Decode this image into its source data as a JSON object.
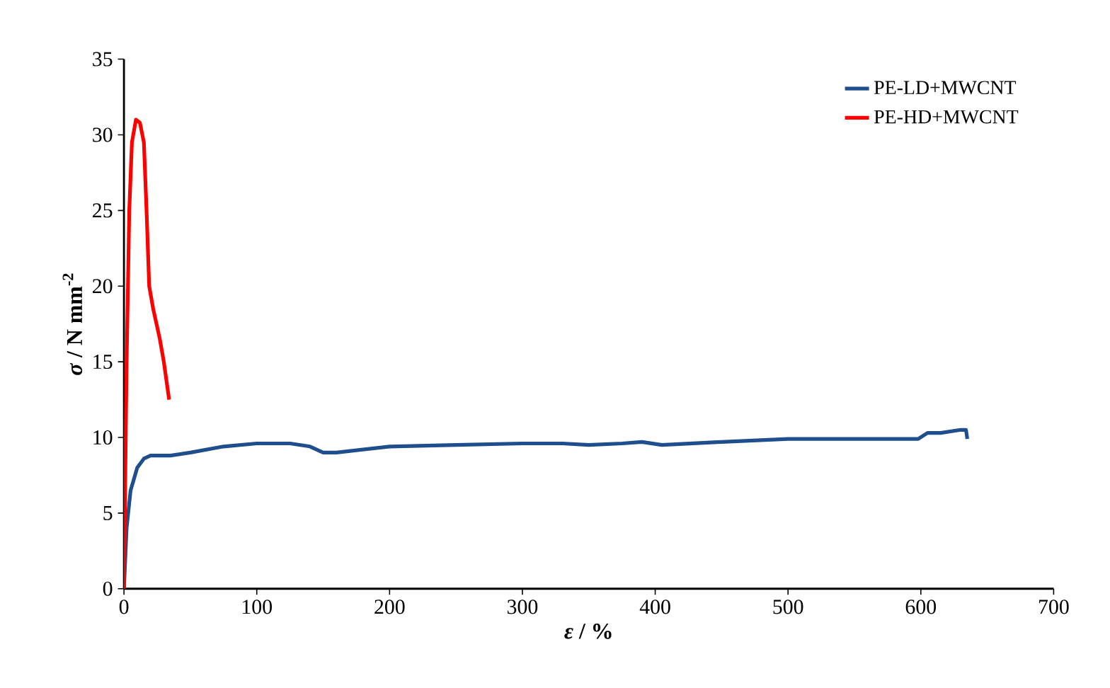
{
  "chart_data": {
    "type": "line",
    "xlabel": "*ε* /  %",
    "ylabel": "*σ* / N mm$^{-2}$",
    "xlim": [
      0,
      700
    ],
    "ylim": [
      0,
      35
    ],
    "xticks": [
      0,
      100,
      200,
      300,
      400,
      500,
      600,
      700
    ],
    "yticks": [
      0,
      5,
      10,
      15,
      20,
      25,
      30,
      35
    ],
    "legend": "top right",
    "grid": false,
    "marker": "none",
    "line_style": "solid",
    "series": [
      {
        "name": "PE-LD+MWCNT",
        "color": "#1f4e8c",
        "x": [
          0,
          2,
          5,
          10,
          15,
          20,
          35,
          50,
          75,
          100,
          125,
          140,
          150,
          160,
          200,
          250,
          300,
          330,
          350,
          375,
          390,
          405,
          450,
          500,
          550,
          590,
          598,
          605,
          615,
          630,
          634,
          635
        ],
        "values": [
          0,
          4,
          6.5,
          8,
          8.6,
          8.8,
          8.8,
          9.0,
          9.4,
          9.6,
          9.6,
          9.4,
          9.0,
          9.0,
          9.4,
          9.5,
          9.6,
          9.6,
          9.5,
          9.6,
          9.7,
          9.5,
          9.7,
          9.9,
          9.9,
          9.9,
          9.9,
          10.3,
          10.3,
          10.5,
          10.5,
          9.9
        ]
      },
      {
        "name": "PE-HD+MWCNT",
        "color": "#ff0000",
        "x": [
          0,
          2,
          4,
          6,
          9,
          12,
          15,
          17,
          19,
          22,
          27,
          30,
          34
        ],
        "values": [
          0,
          15,
          25,
          29.5,
          31,
          30.8,
          29.5,
          25,
          20,
          18.5,
          16.5,
          15,
          12.5
        ]
      }
    ]
  }
}
